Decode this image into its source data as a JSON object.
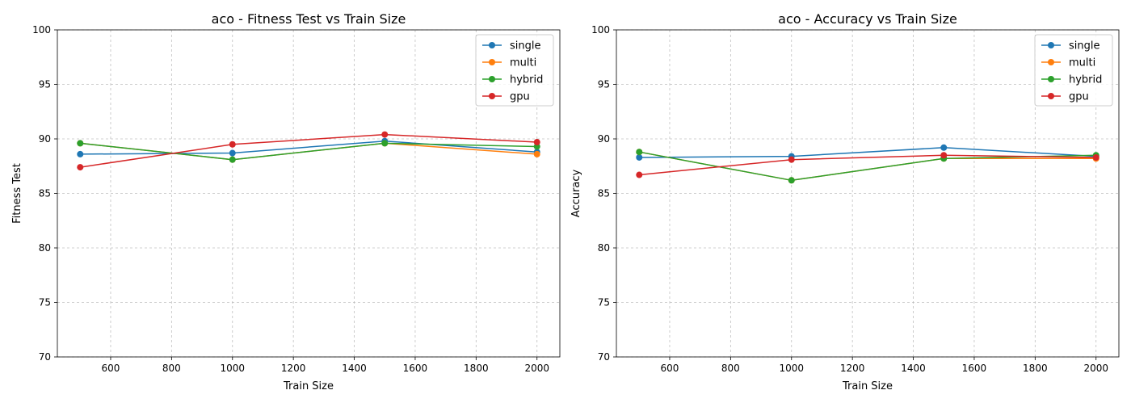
{
  "chart_data": [
    {
      "type": "line",
      "title": "aco - Fitness Test vs Train Size",
      "xlabel": "Train Size",
      "ylabel": "Fitness Test",
      "xlim": [
        425,
        2075
      ],
      "ylim": [
        70,
        100
      ],
      "xticks": [
        600,
        800,
        1000,
        1200,
        1400,
        1600,
        1800,
        2000
      ],
      "yticks": [
        70,
        75,
        80,
        85,
        90,
        95,
        100
      ],
      "grid": true,
      "legend_position": "top-right",
      "x": [
        500,
        1000,
        1500,
        2000
      ],
      "series": [
        {
          "name": "single",
          "color": "#1f77b4",
          "values": [
            88.6,
            88.7,
            89.8,
            88.8
          ]
        },
        {
          "name": "multi",
          "color": "#ff7f0e",
          "values": [
            89.6,
            88.1,
            89.6,
            88.6
          ]
        },
        {
          "name": "hybrid",
          "color": "#2ca02c",
          "values": [
            89.6,
            88.1,
            89.6,
            89.3
          ]
        },
        {
          "name": "gpu",
          "color": "#d62728",
          "values": [
            87.4,
            89.5,
            90.4,
            89.7
          ]
        }
      ]
    },
    {
      "type": "line",
      "title": "aco - Accuracy vs Train Size",
      "xlabel": "Train Size",
      "ylabel": "Accuracy",
      "xlim": [
        425,
        2075
      ],
      "ylim": [
        70,
        100
      ],
      "xticks": [
        600,
        800,
        1000,
        1200,
        1400,
        1600,
        1800,
        2000
      ],
      "yticks": [
        70,
        75,
        80,
        85,
        90,
        95,
        100
      ],
      "grid": true,
      "legend_position": "top-right",
      "x": [
        500,
        1000,
        1500,
        2000
      ],
      "series": [
        {
          "name": "single",
          "color": "#1f77b4",
          "values": [
            88.3,
            88.4,
            89.2,
            88.4
          ]
        },
        {
          "name": "multi",
          "color": "#ff7f0e",
          "values": [
            88.8,
            86.2,
            88.2,
            88.2
          ]
        },
        {
          "name": "hybrid",
          "color": "#2ca02c",
          "values": [
            88.8,
            86.2,
            88.2,
            88.5
          ]
        },
        {
          "name": "gpu",
          "color": "#d62728",
          "values": [
            86.7,
            88.1,
            88.5,
            88.3
          ]
        }
      ]
    }
  ]
}
